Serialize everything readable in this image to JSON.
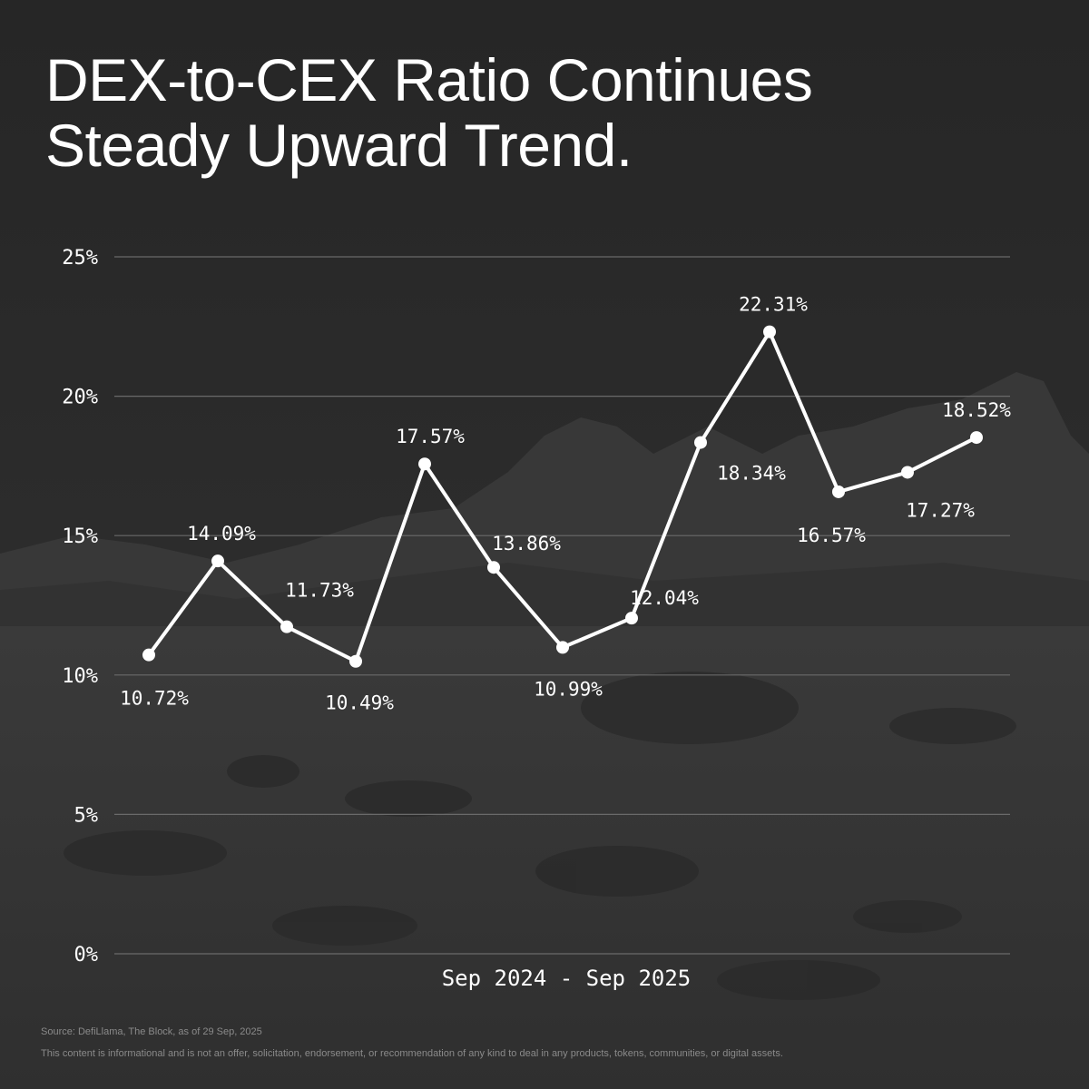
{
  "title": {
    "line1": "DEX-to-CEX Ratio Continues",
    "line2": "Steady Upward Trend."
  },
  "chart_data": {
    "type": "line",
    "title": "DEX-to-CEX Ratio Continues Steady Upward Trend.",
    "xlabel": "Sep 2024 - Sep 2025",
    "ylabel": "",
    "ylim": [
      0,
      25
    ],
    "y_ticks": [
      "0%",
      "5%",
      "10%",
      "15%",
      "20%",
      "25%"
    ],
    "grid": true,
    "series": [
      {
        "values": [
          10.72,
          14.09,
          11.73,
          10.49,
          17.57,
          13.86,
          10.99,
          12.04,
          18.34,
          22.31,
          16.57,
          17.27,
          18.52
        ],
        "labels": [
          "10.72%",
          "14.09%",
          "11.73%",
          "10.49%",
          "17.57%",
          "13.86%",
          "10.99%",
          "12.04%",
          "18.34%",
          "22.31%",
          "16.57%",
          "17.27%",
          "18.52%"
        ]
      }
    ],
    "colors": {
      "line": "#ffffff",
      "grid": "#6a6a6a",
      "background": "#2a2a2a"
    }
  },
  "footer": {
    "source": "Source: DefiLlama, The Block, as of 29 Sep, 2025",
    "disclaimer": "This content is informational and is not an offer, solicitation, endorsement, or recommendation of any kind to deal in any products, tokens, communities, or digital assets."
  }
}
